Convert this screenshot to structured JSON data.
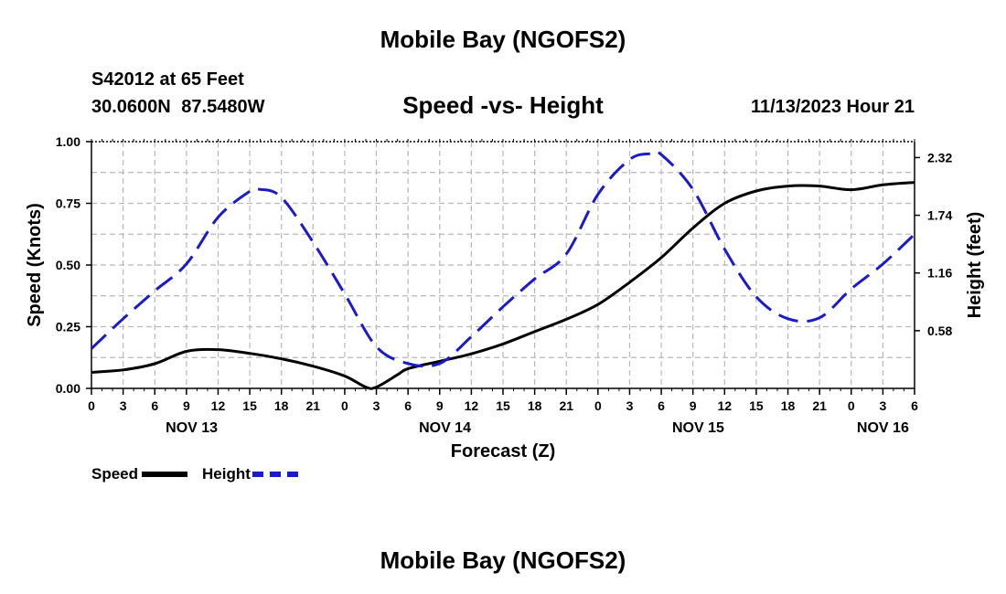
{
  "page": {
    "title": "Mobile Bay (NGOFS2)",
    "bottom_title": "Mobile Bay (NGOFS2)",
    "station": "S42012 at 65 Feet",
    "coords": "30.0600N  87.5480W",
    "subtitle": "Speed -vs- Height",
    "valid_time": "11/13/2023 Hour 21"
  },
  "chart_data": {
    "type": "line",
    "title": "Speed -vs- Height",
    "xlabel": "Forecast (Z)",
    "ylabel": "Speed (Knots)",
    "y2label": "Height (feet)",
    "xlim": [
      0,
      78
    ],
    "ylim": [
      0,
      1.0
    ],
    "y2lim": [
      0,
      2.48
    ],
    "grid": true,
    "x_ticks": [
      0,
      3,
      6,
      9,
      12,
      15,
      18,
      21,
      24,
      27,
      30,
      33,
      36,
      39,
      42,
      45,
      48,
      51,
      54,
      57,
      60,
      63,
      66,
      69,
      72,
      75,
      78
    ],
    "x_tick_labels": [
      "0",
      "3",
      "6",
      "9",
      "12",
      "15",
      "18",
      "21",
      "0",
      "3",
      "6",
      "9",
      "12",
      "15",
      "18",
      "21",
      "0",
      "3",
      "6",
      "9",
      "12",
      "15",
      "18",
      "21",
      "0",
      "3",
      "6"
    ],
    "date_labels": [
      {
        "label": "NOV 13",
        "x": 9.5
      },
      {
        "label": "NOV 14",
        "x": 33.5
      },
      {
        "label": "NOV 15",
        "x": 57.5
      },
      {
        "label": "NOV 16",
        "x": 75
      }
    ],
    "y_ticks": [
      0,
      0.25,
      0.5,
      0.75,
      1.0
    ],
    "y_tick_labels": [
      "0.00",
      "0.25",
      "0.50",
      "0.75",
      "1.00"
    ],
    "y2_ticks": [
      0.58,
      1.16,
      1.74,
      2.32
    ],
    "y2_tick_labels": [
      "0.58",
      "1.16",
      "1.74",
      "2.32"
    ],
    "series": [
      {
        "name": "Speed",
        "axis": "left",
        "color": "#000000",
        "style": "solid",
        "x": [
          0,
          3,
          6,
          9,
          12,
          15,
          18,
          21,
          24,
          26,
          27,
          29,
          30,
          33,
          36,
          39,
          42,
          45,
          48,
          51,
          54,
          57,
          60,
          63,
          66,
          69,
          72,
          75,
          78
        ],
        "values": [
          0.065,
          0.075,
          0.1,
          0.15,
          0.157,
          0.142,
          0.12,
          0.09,
          0.05,
          0.005,
          0.005,
          0.055,
          0.08,
          0.11,
          0.14,
          0.18,
          0.23,
          0.28,
          0.34,
          0.43,
          0.53,
          0.65,
          0.75,
          0.8,
          0.82,
          0.82,
          0.805,
          0.825,
          0.835
        ]
      },
      {
        "name": "Height",
        "axis": "right",
        "color": "#1a1acc",
        "style": "dashed",
        "x": [
          0,
          3,
          6,
          9,
          12,
          15,
          16,
          18,
          21,
          24,
          27,
          30,
          33,
          36,
          39,
          42,
          45,
          48,
          51,
          53,
          54,
          57,
          60,
          63,
          66,
          69,
          72,
          75,
          78
        ],
        "values": [
          0.4,
          0.7,
          0.98,
          1.25,
          1.72,
          1.98,
          2.0,
          1.92,
          1.47,
          0.95,
          0.42,
          0.25,
          0.25,
          0.52,
          0.82,
          1.1,
          1.35,
          1.95,
          2.3,
          2.36,
          2.35,
          2.0,
          1.4,
          0.92,
          0.7,
          0.71,
          1.0,
          1.25,
          1.55
        ]
      }
    ],
    "legend": {
      "position": "bottom-left",
      "entries": [
        "Speed",
        "Height"
      ]
    }
  }
}
